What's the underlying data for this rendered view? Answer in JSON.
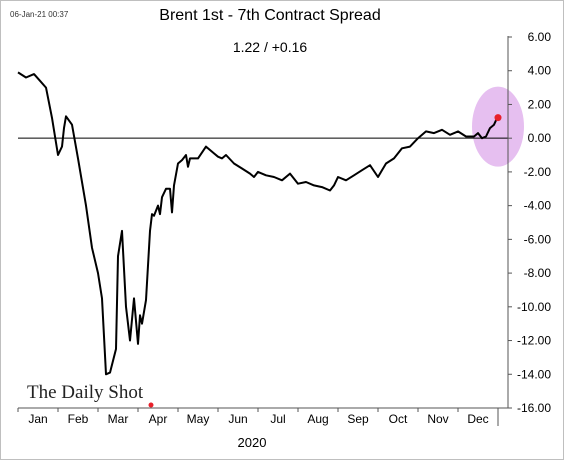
{
  "timestamp": "06-Jan-21 00:37",
  "colors": {
    "line": "#000000",
    "highlight_fill": "#e6bff0",
    "marker": "#e8202a",
    "zero_line": "#000000"
  },
  "chart_data": {
    "type": "line",
    "title": "Brent 1st - 7th Contract Spread",
    "subtitle": "1.22  /  +0.16",
    "xlabel": "2020",
    "ylabel": "",
    "ylim": [
      -16,
      6
    ],
    "y_ticks": [
      "6.00",
      "4.00",
      "2.00",
      "0.00",
      "-2.00",
      "-4.00",
      "-6.00",
      "-8.00",
      "-10.00",
      "-12.00",
      "-14.00",
      "-16.00"
    ],
    "x_ticks": [
      "Jan",
      "Feb",
      "Mar",
      "Apr",
      "May",
      "Jun",
      "Jul",
      "Aug",
      "Sep",
      "Oct",
      "Nov",
      "Dec"
    ],
    "last_value": 1.22,
    "last_change": "+0.16",
    "x": [
      0,
      0.2,
      0.4,
      0.55,
      0.7,
      0.85,
      1.0,
      1.1,
      1.15,
      1.2,
      1.35,
      1.5,
      1.7,
      1.85,
      1.9,
      2.0,
      2.1,
      2.2,
      2.3,
      2.45,
      2.5,
      2.6,
      2.7,
      2.8,
      2.9,
      3.0,
      3.05,
      3.1,
      3.2,
      3.3,
      3.35,
      3.4,
      3.5,
      3.55,
      3.6,
      3.7,
      3.8,
      3.85,
      3.9,
      4.0,
      4.1,
      4.2,
      4.25,
      4.3,
      4.5,
      4.7,
      4.9,
      5.0,
      5.1,
      5.2,
      5.4,
      5.6,
      5.8,
      5.9,
      6.0,
      6.2,
      6.4,
      6.6,
      6.8,
      7.0,
      7.2,
      7.4,
      7.6,
      7.8,
      7.9,
      8.0,
      8.2,
      8.4,
      8.6,
      8.8,
      9.0,
      9.2,
      9.4,
      9.6,
      9.8,
      10.0,
      10.2,
      10.4,
      10.6,
      10.8,
      11.0,
      11.2,
      11.4,
      11.5,
      11.6,
      11.7,
      11.8,
      11.9,
      11.95,
      12.0
    ],
    "values": [
      3.9,
      3.6,
      3.8,
      3.4,
      3.0,
      1.2,
      -1.0,
      -0.5,
      0.6,
      1.3,
      0.8,
      -1.2,
      -4.0,
      -6.5,
      -7.0,
      -8.0,
      -9.5,
      -14.0,
      -13.9,
      -12.5,
      -7.0,
      -5.5,
      -10.0,
      -12.0,
      -9.5,
      -12.2,
      -10.5,
      -11.0,
      -9.6,
      -5.5,
      -4.5,
      -4.6,
      -4.0,
      -4.5,
      -3.5,
      -3.0,
      -3.0,
      -4.4,
      -2.8,
      -1.5,
      -1.3,
      -1.0,
      -1.7,
      -1.2,
      -1.2,
      -0.5,
      -0.9,
      -1.1,
      -1.2,
      -1.0,
      -1.5,
      -1.8,
      -2.1,
      -2.3,
      -2.0,
      -2.2,
      -2.3,
      -2.5,
      -2.1,
      -2.7,
      -2.6,
      -2.8,
      -2.9,
      -3.1,
      -2.8,
      -2.3,
      -2.5,
      -2.2,
      -1.9,
      -1.6,
      -2.3,
      -1.5,
      -1.2,
      -0.6,
      -0.5,
      0.0,
      0.4,
      0.3,
      0.5,
      0.2,
      0.4,
      0.1,
      0.1,
      0.3,
      0.0,
      0.1,
      0.6,
      0.8,
      1.06,
      1.22
    ]
  }
}
